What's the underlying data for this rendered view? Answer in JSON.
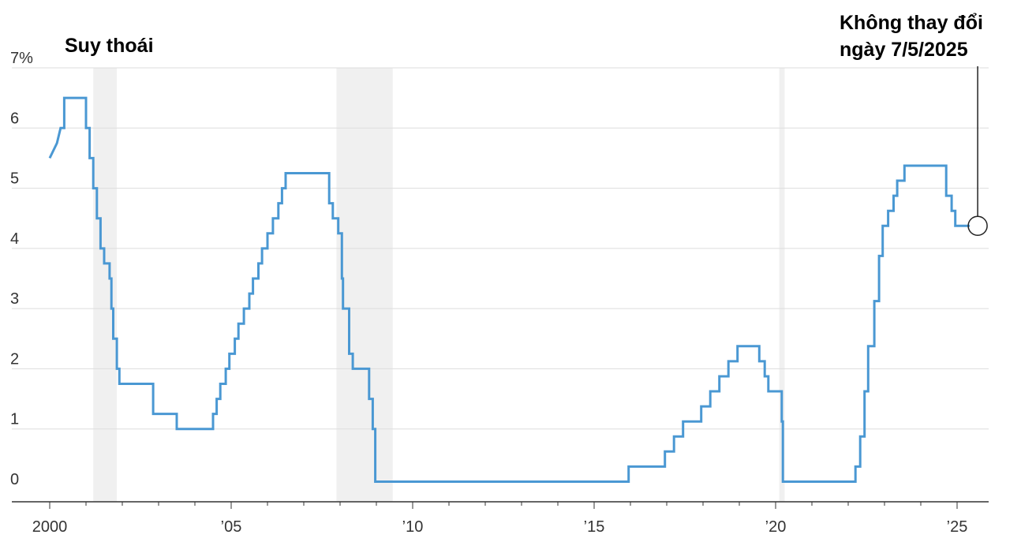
{
  "chart_data": {
    "type": "line",
    "step": true,
    "title": "",
    "xlabel": "",
    "ylabel": "",
    "xlim": [
      1999.7,
      2025.9
    ],
    "ylim": [
      0,
      7
    ],
    "grid": true,
    "y_ticks": [
      {
        "value": 0,
        "label": "0"
      },
      {
        "value": 1,
        "label": "1"
      },
      {
        "value": 2,
        "label": "2"
      },
      {
        "value": 3,
        "label": "3"
      },
      {
        "value": 4,
        "label": "4"
      },
      {
        "value": 5,
        "label": "5"
      },
      {
        "value": 6,
        "label": "6"
      },
      {
        "value": 7,
        "label": "7%"
      }
    ],
    "x_ticks": [
      {
        "value": 2000,
        "label": "2000"
      },
      {
        "value": 2005,
        "label": "’05"
      },
      {
        "value": 2010,
        "label": "’10"
      },
      {
        "value": 2015,
        "label": "’15"
      },
      {
        "value": 2020,
        "label": "’20"
      },
      {
        "value": 2025,
        "label": "’25"
      }
    ],
    "recessions": [
      {
        "start": 2001.2,
        "end": 2001.85
      },
      {
        "start": 2007.9,
        "end": 2009.45
      },
      {
        "start": 2020.1,
        "end": 2020.25
      }
    ],
    "annotations": {
      "recession_label": "Suy thoái",
      "latest_label_line1": "Không thay đổi",
      "latest_label_line2": "ngày 7/5/2025"
    },
    "series": [
      {
        "color": "#4a98d3",
        "points": [
          [
            2000.0,
            5.5
          ],
          [
            2000.2,
            5.75
          ],
          [
            2000.2,
            5.75
          ],
          [
            2000.3,
            6.0
          ],
          [
            2000.4,
            6.0
          ],
          [
            2000.4,
            6.5
          ],
          [
            2001.0,
            6.5
          ],
          [
            2001.0,
            6.0
          ],
          [
            2001.1,
            6.0
          ],
          [
            2001.1,
            5.5
          ],
          [
            2001.2,
            5.5
          ],
          [
            2001.2,
            5.0
          ],
          [
            2001.3,
            5.0
          ],
          [
            2001.3,
            4.5
          ],
          [
            2001.4,
            4.5
          ],
          [
            2001.4,
            4.0
          ],
          [
            2001.5,
            4.0
          ],
          [
            2001.5,
            3.75
          ],
          [
            2001.65,
            3.75
          ],
          [
            2001.65,
            3.5
          ],
          [
            2001.7,
            3.5
          ],
          [
            2001.7,
            3.0
          ],
          [
            2001.75,
            3.0
          ],
          [
            2001.75,
            2.5
          ],
          [
            2001.85,
            2.5
          ],
          [
            2001.85,
            2.0
          ],
          [
            2001.92,
            2.0
          ],
          [
            2001.92,
            1.75
          ],
          [
            2002.85,
            1.75
          ],
          [
            2002.85,
            1.25
          ],
          [
            2003.5,
            1.25
          ],
          [
            2003.5,
            1.0
          ],
          [
            2004.5,
            1.0
          ],
          [
            2004.5,
            1.25
          ],
          [
            2004.6,
            1.25
          ],
          [
            2004.6,
            1.5
          ],
          [
            2004.7,
            1.5
          ],
          [
            2004.7,
            1.75
          ],
          [
            2004.85,
            1.75
          ],
          [
            2004.85,
            2.0
          ],
          [
            2004.95,
            2.0
          ],
          [
            2004.95,
            2.25
          ],
          [
            2005.1,
            2.25
          ],
          [
            2005.1,
            2.5
          ],
          [
            2005.2,
            2.5
          ],
          [
            2005.2,
            2.75
          ],
          [
            2005.35,
            2.75
          ],
          [
            2005.35,
            3.0
          ],
          [
            2005.5,
            3.0
          ],
          [
            2005.5,
            3.25
          ],
          [
            2005.6,
            3.25
          ],
          [
            2005.6,
            3.5
          ],
          [
            2005.75,
            3.5
          ],
          [
            2005.75,
            3.75
          ],
          [
            2005.85,
            3.75
          ],
          [
            2005.85,
            4.0
          ],
          [
            2006.0,
            4.0
          ],
          [
            2006.0,
            4.25
          ],
          [
            2006.15,
            4.25
          ],
          [
            2006.15,
            4.5
          ],
          [
            2006.3,
            4.5
          ],
          [
            2006.3,
            4.75
          ],
          [
            2006.4,
            4.75
          ],
          [
            2006.4,
            5.0
          ],
          [
            2006.5,
            5.0
          ],
          [
            2006.5,
            5.25
          ],
          [
            2007.7,
            5.25
          ],
          [
            2007.7,
            4.75
          ],
          [
            2007.8,
            4.75
          ],
          [
            2007.8,
            4.5
          ],
          [
            2007.95,
            4.5
          ],
          [
            2007.95,
            4.25
          ],
          [
            2008.05,
            4.25
          ],
          [
            2008.05,
            3.5
          ],
          [
            2008.08,
            3.5
          ],
          [
            2008.08,
            3.0
          ],
          [
            2008.25,
            3.0
          ],
          [
            2008.25,
            2.25
          ],
          [
            2008.35,
            2.25
          ],
          [
            2008.35,
            2.0
          ],
          [
            2008.8,
            2.0
          ],
          [
            2008.8,
            1.5
          ],
          [
            2008.9,
            1.5
          ],
          [
            2008.9,
            1.0
          ],
          [
            2008.97,
            1.0
          ],
          [
            2008.97,
            0.125
          ],
          [
            2015.95,
            0.125
          ],
          [
            2015.95,
            0.375
          ],
          [
            2016.95,
            0.375
          ],
          [
            2016.95,
            0.625
          ],
          [
            2017.2,
            0.625
          ],
          [
            2017.2,
            0.875
          ],
          [
            2017.45,
            0.875
          ],
          [
            2017.45,
            1.125
          ],
          [
            2017.95,
            1.125
          ],
          [
            2017.95,
            1.375
          ],
          [
            2018.2,
            1.375
          ],
          [
            2018.2,
            1.625
          ],
          [
            2018.45,
            1.625
          ],
          [
            2018.45,
            1.875
          ],
          [
            2018.7,
            1.875
          ],
          [
            2018.7,
            2.125
          ],
          [
            2018.95,
            2.125
          ],
          [
            2018.95,
            2.375
          ],
          [
            2019.55,
            2.375
          ],
          [
            2019.55,
            2.125
          ],
          [
            2019.7,
            2.125
          ],
          [
            2019.7,
            1.875
          ],
          [
            2019.8,
            1.875
          ],
          [
            2019.8,
            1.625
          ],
          [
            2020.17,
            1.625
          ],
          [
            2020.17,
            1.125
          ],
          [
            2020.2,
            1.125
          ],
          [
            2020.2,
            0.125
          ],
          [
            2022.2,
            0.125
          ],
          [
            2022.2,
            0.375
          ],
          [
            2022.33,
            0.375
          ],
          [
            2022.33,
            0.875
          ],
          [
            2022.45,
            0.875
          ],
          [
            2022.45,
            1.625
          ],
          [
            2022.55,
            1.625
          ],
          [
            2022.55,
            2.375
          ],
          [
            2022.72,
            2.375
          ],
          [
            2022.72,
            3.125
          ],
          [
            2022.85,
            3.125
          ],
          [
            2022.85,
            3.875
          ],
          [
            2022.95,
            3.875
          ],
          [
            2022.95,
            4.375
          ],
          [
            2023.1,
            4.375
          ],
          [
            2023.1,
            4.625
          ],
          [
            2023.25,
            4.625
          ],
          [
            2023.25,
            4.875
          ],
          [
            2023.35,
            4.875
          ],
          [
            2023.35,
            5.125
          ],
          [
            2023.55,
            5.125
          ],
          [
            2023.55,
            5.375
          ],
          [
            2024.7,
            5.375
          ],
          [
            2024.7,
            4.875
          ],
          [
            2024.85,
            4.875
          ],
          [
            2024.85,
            4.625
          ],
          [
            2024.95,
            4.625
          ],
          [
            2024.95,
            4.375
          ],
          [
            2025.35,
            4.375
          ]
        ]
      }
    ]
  }
}
